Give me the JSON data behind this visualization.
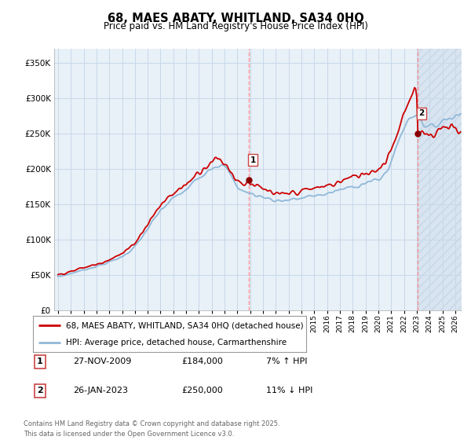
{
  "title": "68, MAES ABATY, WHITLAND, SA34 0HQ",
  "subtitle": "Price paid vs. HM Land Registry's House Price Index (HPI)",
  "legend_line1": "68, MAES ABATY, WHITLAND, SA34 0HQ (detached house)",
  "legend_line2": "HPI: Average price, detached house, Carmarthenshire",
  "footer": "Contains HM Land Registry data © Crown copyright and database right 2025.\nThis data is licensed under the Open Government Licence v3.0.",
  "annotation1_label": "1",
  "annotation1_date": "27-NOV-2009",
  "annotation1_price": "£184,000",
  "annotation1_hpi": "7% ↑ HPI",
  "annotation2_label": "2",
  "annotation2_date": "26-JAN-2023",
  "annotation2_price": "£250,000",
  "annotation2_hpi": "11% ↓ HPI",
  "hpi_color": "#90b8d8",
  "price_color": "#cc0000",
  "vline_color": "#ff8888",
  "grid_color": "#c8d8e8",
  "background_color": "#e8f0f8",
  "future_bg_color": "#d8e4f0",
  "ylim": [
    0,
    370000
  ],
  "yticks": [
    0,
    50000,
    100000,
    150000,
    200000,
    250000,
    300000,
    350000
  ],
  "xlim_start": 1994.7,
  "xlim_end": 2026.5,
  "sale1_x": 2009.91,
  "sale1_y": 184000,
  "sale2_x": 2023.07,
  "sale2_y": 250000
}
